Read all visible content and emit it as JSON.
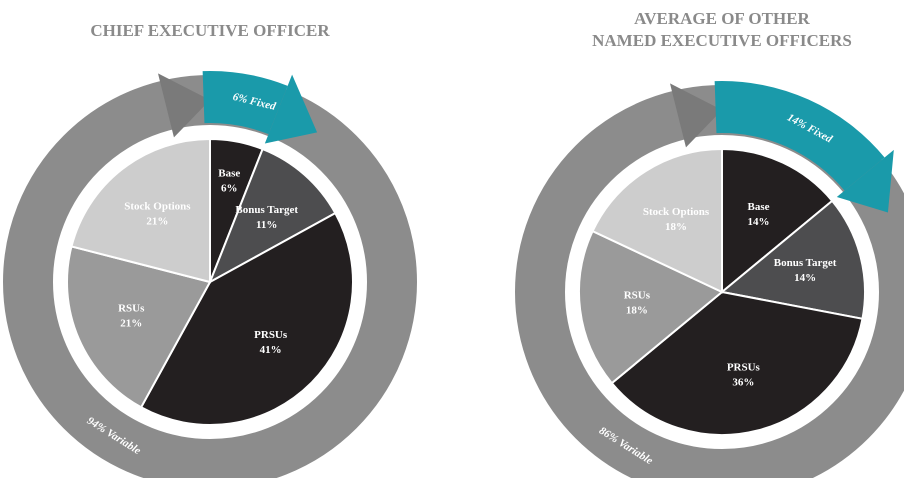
{
  "chart_data": [
    {
      "type": "pie",
      "title": [
        "CHIEF EXECUTIVE OFFICER"
      ],
      "categories": [
        "Base",
        "Bonus Target",
        "PRSUs",
        "RSUs",
        "Stock Options"
      ],
      "values": [
        6,
        11,
        41,
        21,
        21
      ],
      "value_labels": [
        "6%",
        "11%",
        "41%",
        "21%",
        "21%"
      ],
      "colors": [
        "#231f20",
        "#4d4d4f",
        "#231f20",
        "#9a9a9a",
        "#cdcdcd"
      ],
      "annotations": [
        "6% Fixed",
        "94% Variable"
      ]
    },
    {
      "type": "pie",
      "title": [
        "AVERAGE OF OTHER",
        "NAMED EXECUTIVE OFFICERS"
      ],
      "categories": [
        "Base",
        "Bonus Target",
        "PRSUs",
        "RSUs",
        "Stock Options"
      ],
      "values": [
        14,
        14,
        36,
        18,
        18
      ],
      "value_labels": [
        "14%",
        "14%",
        "36%",
        "18%",
        "18%"
      ],
      "colors": [
        "#231f20",
        "#4d4d4f",
        "#231f20",
        "#9a9a9a",
        "#cdcdcd"
      ],
      "annotations": [
        "14% Fixed",
        "86% Variable"
      ]
    }
  ]
}
